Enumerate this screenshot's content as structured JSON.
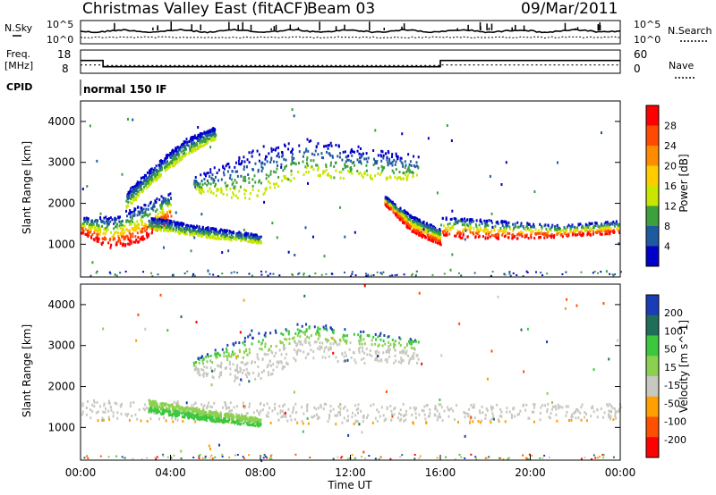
{
  "header": {
    "station": "Christmas Valley East (fitACF)",
    "beam": "Beam 03",
    "date": "09/Mar/2011"
  },
  "noise_panel": {
    "left_label": "N.Sky",
    "left_ticks": [
      "10^5",
      "10^0"
    ],
    "right_ticks": [
      "10^5",
      "10^0"
    ],
    "right_label": "N.Search"
  },
  "freq_panel": {
    "left_label_line1": "Freq.",
    "left_label_line2": "[MHz]",
    "left_ticks": [
      "18",
      "8"
    ],
    "right_ticks": [
      "60",
      "0"
    ],
    "right_label": "Nave",
    "freq_steps": [
      {
        "t": 0,
        "v": 13.6
      },
      {
        "t": 1,
        "v": 10.4
      },
      {
        "t": 16,
        "v": 13.6
      },
      {
        "t": 24,
        "v": 13.6
      }
    ],
    "nave_steps": [
      {
        "t": 0,
        "v": 20
      },
      {
        "t": 1,
        "v": 18
      },
      {
        "t": 16,
        "v": 20
      },
      {
        "t": 24,
        "v": 20
      }
    ]
  },
  "cpid": {
    "label": "CPID",
    "value": "normal 150 IF"
  },
  "chart_data": [
    {
      "type": "heatmap",
      "title": "",
      "xlabel": "",
      "ylabel": "Slant Range [km]",
      "xlim": [
        0,
        24
      ],
      "ylim": [
        200,
        4500
      ],
      "yticks": [
        "1000",
        "2000",
        "3000",
        "4000"
      ],
      "colorbar": {
        "label": "Power [dB]",
        "ticks": [
          "28",
          "24",
          "20",
          "16",
          "12",
          "8",
          "4"
        ],
        "colors": [
          "#ff0000",
          "#ff4a00",
          "#ff8c00",
          "#ffcc00",
          "#c8e600",
          "#3ca03c",
          "#1e5aa0",
          "#0000c8"
        ]
      },
      "regions": [
        {
          "name": "main",
          "t_start": 0.0,
          "t_end": 4.0,
          "range_low": [
            1300,
            900,
            1100,
            1600
          ],
          "range_high": [
            1700,
            1700,
            2000,
            2300
          ]
        },
        {
          "name": "upper-arc",
          "t_start": 2.0,
          "t_end": 6.0,
          "range_low": [
            1900,
            2600,
            3200,
            3600
          ],
          "range_high": [
            2300,
            3000,
            3600,
            3900
          ]
        },
        {
          "name": "descending-band",
          "t_start": 3.0,
          "t_end": 8.0,
          "range_low": [
            1400,
            1200,
            1050
          ],
          "range_high": [
            1700,
            1450,
            1250
          ]
        },
        {
          "name": "far-range",
          "t_start": 5.0,
          "t_end": 15.0,
          "range_low": [
            2300,
            2100,
            2700,
            2600,
            2600
          ],
          "range_high": [
            2700,
            3300,
            3600,
            3400,
            3200
          ]
        },
        {
          "name": "recovery",
          "t_start": 13.5,
          "t_end": 16.0,
          "range_low": [
            2000,
            1300,
            1000
          ],
          "range_high": [
            2200,
            1700,
            1400
          ]
        },
        {
          "name": "late-band",
          "t_start": 16.0,
          "t_end": 24.0,
          "range_low": [
            1200,
            1150,
            1200,
            1300
          ],
          "range_high": [
            1700,
            1600,
            1500,
            1600
          ]
        }
      ]
    },
    {
      "type": "heatmap",
      "title": "",
      "xlabel": "Time UT",
      "ylabel": "Slant Range [km]",
      "xlim": [
        0,
        24
      ],
      "ylim": [
        200,
        4500
      ],
      "xticks": [
        "00:00",
        "04:00",
        "08:00",
        "12:00",
        "16:00",
        "20:00",
        "00:00"
      ],
      "yticks": [
        "1000",
        "2000",
        "3000",
        "4000"
      ],
      "colorbar": {
        "label": "Velocity [m s^-1]",
        "ticks": [
          "200",
          "100",
          "50",
          "15",
          "-15",
          "-50",
          "-100",
          "-200"
        ],
        "colors": [
          "#1a3cb4",
          "#1e6e5a",
          "#3cc83c",
          "#8cd050",
          "#c8c8c0",
          "#ffa000",
          "#ff5000",
          "#ff0000"
        ]
      },
      "regions": [
        {
          "name": "ground-scatter",
          "t_start": 0.0,
          "t_end": 24.0,
          "range_low": [
            1200,
            1100,
            1200
          ],
          "range_high": [
            1700,
            1600,
            1600
          ],
          "value": "low"
        },
        {
          "name": "positive-band",
          "t_start": 3.0,
          "t_end": 8.0,
          "range_low": [
            1400,
            1200,
            1050
          ],
          "range_high": [
            1700,
            1450,
            1250
          ],
          "value": "positive"
        },
        {
          "name": "far-range",
          "t_start": 5.0,
          "t_end": 15.0,
          "range_low": [
            2300,
            2100,
            2700,
            2600,
            2600
          ],
          "range_high": [
            2700,
            3300,
            3600,
            3400,
            3200
          ],
          "value": "mixed"
        }
      ]
    }
  ],
  "colors": {
    "axis": "#000000",
    "background": "#ffffff"
  }
}
